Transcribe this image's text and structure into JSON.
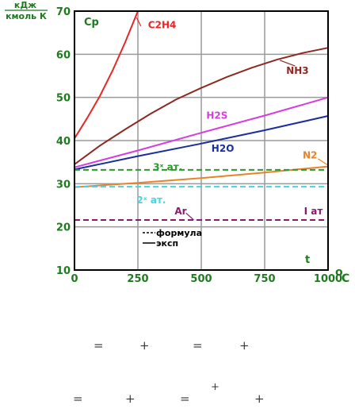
{
  "chart_data": {
    "type": "line",
    "unit_top": "кДж",
    "unit_bottom": "кмоль К",
    "y_label": "Cp",
    "x_label": "t",
    "x_unit": "°C",
    "xlim": [
      0,
      1000
    ],
    "ylim": [
      10,
      70
    ],
    "x_ticks": [
      0,
      250,
      500,
      750,
      1000
    ],
    "y_ticks": [
      10,
      20,
      30,
      40,
      50,
      60,
      70
    ],
    "x_tick_labels": [
      "0",
      "250",
      "500",
      "750",
      "1000"
    ],
    "y_tick_labels": [
      "10",
      "20",
      "30",
      "40",
      "50",
      "60",
      "70"
    ],
    "grid": true,
    "series": [
      {
        "name": "C2H4",
        "style": "solid",
        "color": "#e82626",
        "label_at": [
          290,
          66.8
        ],
        "x": [
          0,
          50,
          100,
          150,
          200,
          250
        ],
        "y": [
          40.5,
          45.2,
          50.3,
          56.2,
          62.8,
          70
        ]
      },
      {
        "name": "NH3",
        "style": "solid",
        "color": "#8b2a22",
        "label_at": [
          835,
          56.2
        ],
        "x": [
          0,
          100,
          200,
          300,
          400,
          500,
          600,
          700,
          800,
          900,
          1000
        ],
        "y": [
          34.5,
          38.8,
          42.6,
          46.2,
          49.5,
          52.2,
          54.7,
          56.9,
          58.8,
          60.3,
          61.5
        ]
      },
      {
        "name": "H2S",
        "style": "solid",
        "color": "#d63ce0",
        "label_at": [
          520,
          45.8
        ],
        "x": [
          0,
          250,
          500,
          750,
          1000
        ],
        "y": [
          33.8,
          37.7,
          41.8,
          45.8,
          50.0
        ]
      },
      {
        "name": "H2O",
        "style": "solid",
        "color": "#1a2e9e",
        "label_at": [
          540,
          38.2
        ],
        "x": [
          0,
          250,
          500,
          750,
          1000
        ],
        "y": [
          33.3,
          36.4,
          39.3,
          42.4,
          45.7
        ]
      },
      {
        "name": "N2",
        "style": "solid",
        "color": "#e8832a",
        "label_at": [
          900,
          36.6
        ],
        "x": [
          0,
          250,
          500,
          750,
          1000
        ],
        "y": [
          29.2,
          30.2,
          31.3,
          32.6,
          34.0
        ]
      },
      {
        "name": "3ˣ ат.",
        "style": "dashed",
        "color": "#2a9a2a",
        "label_at": [
          310,
          33.8
        ],
        "x": [
          0,
          1000
        ],
        "y": [
          33.2,
          33.2
        ]
      },
      {
        "name": "2ˣ ат.",
        "style": "dashed",
        "color": "#46d2e8",
        "label_at": [
          245,
          26.2
        ],
        "x": [
          0,
          1000
        ],
        "y": [
          29.3,
          29.3
        ]
      },
      {
        "name": "Ar",
        "style": "dashed",
        "color": "#8a1a6e",
        "label_at": [
          395,
          23.6
        ],
        "x": [
          0,
          1000
        ],
        "y": [
          21.6,
          21.6
        ]
      },
      {
        "name": "I ат",
        "style": "dashed",
        "color": "#8a1a6e",
        "label_at": [
          905,
          23.6
        ],
        "x": [
          0,
          1000
        ],
        "y": [
          21.6,
          21.6
        ]
      }
    ],
    "legend": [
      {
        "text": "формула",
        "style": "dashed"
      },
      {
        "text": "эксп",
        "style": "solid"
      }
    ]
  },
  "formulas": {
    "row1": [
      "=",
      "+",
      "=",
      "+"
    ],
    "row2": [
      "=",
      "+",
      "=",
      "+",
      "+"
    ]
  }
}
